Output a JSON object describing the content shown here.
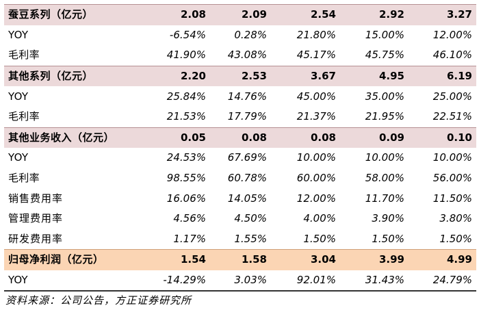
{
  "table": {
    "rows": [
      {
        "kind": "hdr",
        "label": "蚕豆系列（亿元）",
        "values": [
          "2.08",
          "2.09",
          "2.54",
          "2.92",
          "3.27"
        ]
      },
      {
        "kind": "sub",
        "label": "YOY",
        "values": [
          "-6.54%",
          "0.28%",
          "21.80%",
          "15.00%",
          "12.00%"
        ]
      },
      {
        "kind": "sub",
        "label": "毛利率",
        "values": [
          "41.90%",
          "43.08%",
          "45.17%",
          "45.75%",
          "46.10%"
        ]
      },
      {
        "kind": "hdr",
        "label": "其他系列（亿元）",
        "values": [
          "2.20",
          "2.53",
          "3.67",
          "4.95",
          "6.19"
        ]
      },
      {
        "kind": "sub",
        "label": "YOY",
        "values": [
          "25.84%",
          "14.76%",
          "45.00%",
          "35.00%",
          "25.00%"
        ]
      },
      {
        "kind": "sub",
        "label": "毛利率",
        "values": [
          "21.53%",
          "17.79%",
          "21.37%",
          "21.95%",
          "22.51%"
        ]
      },
      {
        "kind": "hdr",
        "label": "其他业务收入（亿元）",
        "values": [
          "0.05",
          "0.08",
          "0.08",
          "0.09",
          "0.10"
        ]
      },
      {
        "kind": "sub",
        "label": "YOY",
        "values": [
          "24.53%",
          "67.69%",
          "10.00%",
          "10.00%",
          "10.00%"
        ]
      },
      {
        "kind": "sub",
        "label": "毛利率",
        "values": [
          "98.55%",
          "60.78%",
          "60.00%",
          "58.00%",
          "56.00%"
        ]
      },
      {
        "kind": "ratio",
        "label": "销售费用率",
        "values": [
          "16.06%",
          "14.05%",
          "12.00%",
          "11.70%",
          "11.50%"
        ]
      },
      {
        "kind": "ratio",
        "label": "管理费用率",
        "values": [
          "4.56%",
          "4.50%",
          "4.00%",
          "3.90%",
          "3.80%"
        ]
      },
      {
        "kind": "ratio",
        "label": "研发费用率",
        "values": [
          "1.17%",
          "1.55%",
          "1.50%",
          "1.50%",
          "1.50%"
        ]
      },
      {
        "kind": "profit",
        "label": "归母净利润（亿元）",
        "values": [
          "1.54",
          "1.58",
          "3.04",
          "3.99",
          "4.99"
        ]
      },
      {
        "kind": "last",
        "label": "YOY",
        "values": [
          "-14.29%",
          "3.03%",
          "92.01%",
          "31.43%",
          "24.79%"
        ]
      }
    ]
  },
  "source": "资料来源：公司公告，方正证券研究所"
}
